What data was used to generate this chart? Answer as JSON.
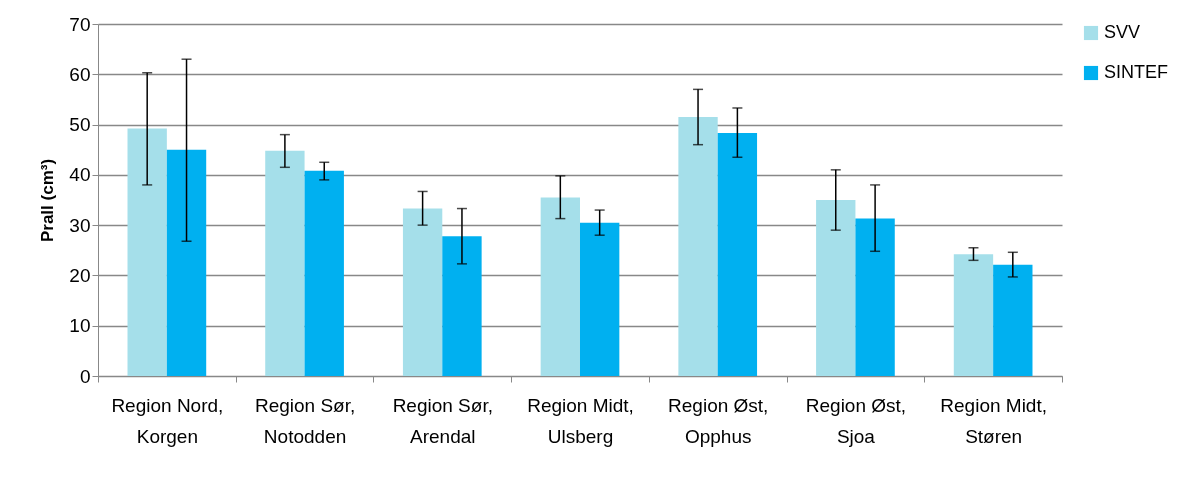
{
  "chart_data": {
    "type": "bar",
    "ylabel": "Prall (cm³)",
    "categories": [
      "Region Nord, Korgen",
      "Region Sør, Notodden",
      "Region Sør, Arendal",
      "Region Midt, Ulsberg",
      "Region Øst, Opphus",
      "Region Øst, Sjoa",
      "Region Midt, Støren"
    ],
    "series": [
      {
        "name": "SVV",
        "color": "#a5dfea",
        "values": [
          49.2,
          44.8,
          33.3,
          35.5,
          51.5,
          35,
          24.2
        ],
        "errors": [
          [
            38,
            60.3
          ],
          [
            41.5,
            48
          ],
          [
            30,
            36.7
          ],
          [
            31.3,
            39.8
          ],
          [
            46,
            57
          ],
          [
            29,
            41
          ],
          [
            23,
            25.5
          ]
        ]
      },
      {
        "name": "SINTEF",
        "color": "#00b0f0",
        "values": [
          45,
          40.8,
          27.8,
          30.5,
          48.3,
          31.3,
          22.1
        ],
        "errors": [
          [
            26.8,
            63
          ],
          [
            39,
            42.5
          ],
          [
            22.3,
            33.3
          ],
          [
            28,
            33
          ],
          [
            43.5,
            53.3
          ],
          [
            24.8,
            38
          ],
          [
            19.7,
            24.6
          ]
        ]
      }
    ],
    "ylim": [
      0,
      70
    ],
    "yticks": [
      0,
      10,
      20,
      30,
      40,
      50,
      60,
      70
    ],
    "grid": "y",
    "legend": "right"
  }
}
